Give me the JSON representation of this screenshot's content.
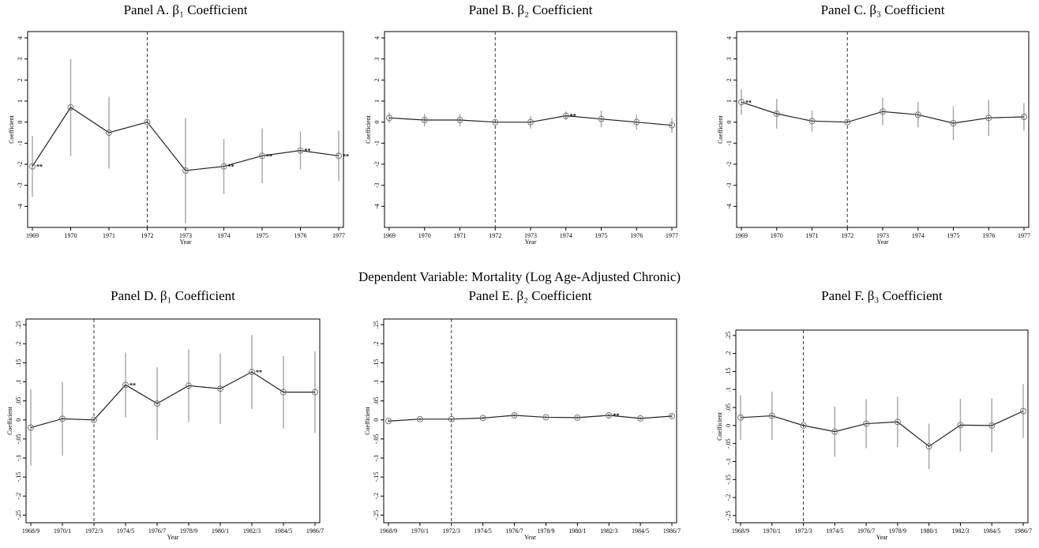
{
  "heading": "Dependent Variable: Mortality (Log Age-Adjusted Chronic)",
  "chart_data": [
    {
      "type": "line",
      "title": "Panel A. β₁ Coefficient",
      "xlabel": "Year",
      "ylabel": "Coefficient",
      "categories": [
        "1969",
        "1970",
        "1971",
        "1972",
        "1973",
        "1974",
        "1975",
        "1976",
        "1977"
      ],
      "values": [
        -2.1,
        0.7,
        -0.5,
        0,
        -2.3,
        -2.1,
        -1.6,
        -1.35,
        -1.6
      ],
      "errors": [
        1.45,
        2.3,
        1.7,
        0,
        2.5,
        1.3,
        1.3,
        0.9,
        1.2
      ],
      "annotations": [
        "**",
        null,
        null,
        null,
        null,
        "**",
        "**",
        "**",
        "**"
      ],
      "vline": "1972",
      "color": "#222222",
      "error_color": "#aaaaaa",
      "ylim": [
        -5,
        4.3
      ],
      "yticks": [
        -4,
        -3,
        -2,
        -1,
        0,
        1,
        2,
        3,
        4
      ]
    },
    {
      "type": "line",
      "title": "Panel B. β₂ Coefficient",
      "xlabel": "Year",
      "ylabel": "Coefficient",
      "categories": [
        "1969",
        "1970",
        "1971",
        "1972",
        "1973",
        "1974",
        "1975",
        "1976",
        "1977"
      ],
      "values": [
        0.2,
        0.1,
        0.1,
        0,
        0,
        0.3,
        0.15,
        0,
        -0.15
      ],
      "errors": [
        0.25,
        0.3,
        0.3,
        0,
        0.3,
        0.2,
        0.4,
        0.35,
        0.35
      ],
      "annotations": [
        null,
        null,
        null,
        null,
        null,
        "**",
        null,
        null,
        null
      ],
      "vline": "1972",
      "color": "#222222",
      "error_color": "#aaaaaa",
      "ylim": [
        -5,
        4.3
      ],
      "yticks": [
        -4,
        -3,
        -2,
        -1,
        0,
        1,
        2,
        3,
        4
      ]
    },
    {
      "type": "line",
      "title": "Panel C. β₃ Coefficient",
      "xlabel": "Year",
      "ylabel": "Coefficient",
      "categories": [
        "1969",
        "1970",
        "1971",
        "1972",
        "1973",
        "1974",
        "1975",
        "1976",
        "1977"
      ],
      "values": [
        0.95,
        0.4,
        0.05,
        0,
        0.5,
        0.35,
        -0.05,
        0.2,
        0.25
      ],
      "errors": [
        0.6,
        0.7,
        0.5,
        0,
        0.65,
        0.6,
        0.8,
        0.85,
        0.65
      ],
      "annotations": [
        "**",
        null,
        null,
        null,
        null,
        null,
        null,
        null,
        null
      ],
      "vline": "1972",
      "color": "#222222",
      "error_color": "#aaaaaa",
      "ylim": [
        -5,
        4.3
      ],
      "yticks": [
        -4,
        -3,
        -2,
        -1,
        0,
        1,
        2,
        3,
        4
      ]
    },
    {
      "type": "line",
      "title": "Panel D. β₁ Coefficient",
      "xlabel": "Year",
      "ylabel": "Coefficient",
      "categories": [
        "1968/9",
        "1970/1",
        "1972/3",
        "1974/5",
        "1976/7",
        "1978/9",
        "1980/1",
        "1982/3",
        "1984/5",
        "1986/7"
      ],
      "values": [
        -0.02,
        0.003,
        0,
        0.092,
        0.043,
        0.09,
        0.082,
        0.126,
        0.073,
        0.073
      ],
      "errors": [
        0.1,
        0.097,
        0,
        0.085,
        0.095,
        0.095,
        0.093,
        0.097,
        0.095,
        0.107
      ],
      "annotations": [
        null,
        null,
        null,
        "**",
        null,
        null,
        null,
        "**",
        null,
        null
      ],
      "vline": "1972/3",
      "color": "#222222",
      "error_color": "#aaaaaa",
      "ylim": [
        -0.27,
        0.265
      ],
      "yticks": [
        {
          "value": -0.25,
          "label": "-.25"
        },
        {
          "value": -0.2,
          "label": "-.2"
        },
        {
          "value": -0.15,
          "label": "-.15"
        },
        {
          "value": -0.1,
          "label": "-.1"
        },
        {
          "value": -0.05,
          "label": "-.05"
        },
        0,
        {
          "value": 0.05,
          "label": ".05"
        },
        {
          "value": 0.1,
          "label": ".1"
        },
        {
          "value": 0.15,
          "label": ".15"
        },
        {
          "value": 0.2,
          "label": ".2"
        },
        {
          "value": 0.25,
          "label": ".25"
        }
      ]
    },
    {
      "type": "line",
      "title": "Panel E. β₂ Coefficient",
      "xlabel": "Year",
      "ylabel": "Coefficient",
      "categories": [
        "1968/9",
        "1970/1",
        "1972/3",
        "1974/5",
        "1976/7",
        "1978/9",
        "1980/1",
        "1982/3",
        "1984/5",
        "1986/7"
      ],
      "values": [
        -0.003,
        0.002,
        0.002,
        0.005,
        0.012,
        0.007,
        0.006,
        0.012,
        0.004,
        0.01
      ],
      "errors": [
        0.004,
        0.004,
        0,
        0.004,
        0.005,
        0.004,
        0.004,
        0.005,
        0.004,
        0.005
      ],
      "annotations": [
        null,
        null,
        null,
        null,
        null,
        null,
        null,
        "**",
        null,
        null
      ],
      "vline": "1972/3",
      "color": "#222222",
      "error_color": "#aaaaaa",
      "ylim": [
        -0.27,
        0.265
      ],
      "yticks": [
        {
          "value": -0.25,
          "label": "-.25"
        },
        {
          "value": -0.2,
          "label": "-.2"
        },
        {
          "value": -0.15,
          "label": "-.15"
        },
        {
          "value": -0.1,
          "label": "-.1"
        },
        {
          "value": -0.05,
          "label": "-.05"
        },
        0,
        {
          "value": 0.05,
          "label": ".05"
        },
        {
          "value": 0.1,
          "label": ".1"
        },
        {
          "value": 0.15,
          "label": ".15"
        },
        {
          "value": 0.2,
          "label": ".2"
        },
        {
          "value": 0.25,
          "label": ".25"
        }
      ]
    },
    {
      "type": "line",
      "title": "Panel F. β₃ Coefficient",
      "xlabel": "Year",
      "ylabel": "Coefficient",
      "categories": [
        "1968/9",
        "1970/1",
        "1972/3",
        "1974/5",
        "1976/7",
        "1978/9",
        "1980/1",
        "1982/3",
        "1984/5",
        "1986/7"
      ],
      "values": [
        0.022,
        0.027,
        0,
        -0.017,
        0.005,
        0.01,
        -0.058,
        0.001,
        0,
        0.04
      ],
      "errors": [
        0.062,
        0.067,
        0,
        0.07,
        0.068,
        0.07,
        0.063,
        0.073,
        0.075,
        0.075
      ],
      "annotations": [
        null,
        null,
        null,
        null,
        null,
        null,
        null,
        null,
        null,
        null
      ],
      "vline": "1972/3",
      "color": "#222222",
      "error_color": "#aaaaaa",
      "ylim": [
        -0.27,
        0.265
      ],
      "yticks": [
        {
          "value": -0.25,
          "label": "-.25"
        },
        {
          "value": -0.2,
          "label": "-.2"
        },
        {
          "value": -0.15,
          "label": "-.15"
        },
        {
          "value": -0.1,
          "label": "-.1"
        },
        {
          "value": -0.05,
          "label": "-.05"
        },
        0,
        {
          "value": 0.05,
          "label": ".05"
        },
        {
          "value": 0.1,
          "label": ".1"
        },
        {
          "value": 0.15,
          "label": ".15"
        },
        {
          "value": 0.2,
          "label": ".2"
        },
        {
          "value": 0.25,
          "label": ".25"
        }
      ]
    }
  ]
}
